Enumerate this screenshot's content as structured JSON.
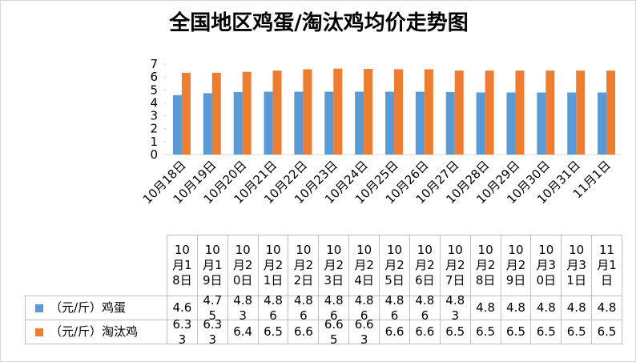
{
  "chart_data": {
    "type": "bar",
    "title": "全国地区鸡蛋/淘汰鸡均价走势图",
    "categories": [
      "10月18日",
      "10月19日",
      "10月20日",
      "10月21日",
      "10月22日",
      "10月23日",
      "10月24日",
      "10月25日",
      "10月26日",
      "10月27日",
      "10月28日",
      "10月29日",
      "10月30日",
      "10月31日",
      "11月1日"
    ],
    "series": [
      {
        "name": "（元/斤）鸡蛋",
        "color": "#5b9bd5",
        "values": [
          4.6,
          4.75,
          4.83,
          4.86,
          4.86,
          4.86,
          4.86,
          4.86,
          4.86,
          4.83,
          4.8,
          4.8,
          4.8,
          4.8,
          4.8
        ]
      },
      {
        "name": "（元/斤）淘汰鸡",
        "color": "#ed7d31",
        "values": [
          6.33,
          6.33,
          6.4,
          6.5,
          6.6,
          6.65,
          6.63,
          6.6,
          6.6,
          6.5,
          6.5,
          6.5,
          6.5,
          6.5,
          6.5
        ]
      }
    ],
    "ylim": [
      0,
      7
    ],
    "yticks": [
      0,
      1,
      2,
      3,
      4,
      5,
      6,
      7
    ]
  }
}
